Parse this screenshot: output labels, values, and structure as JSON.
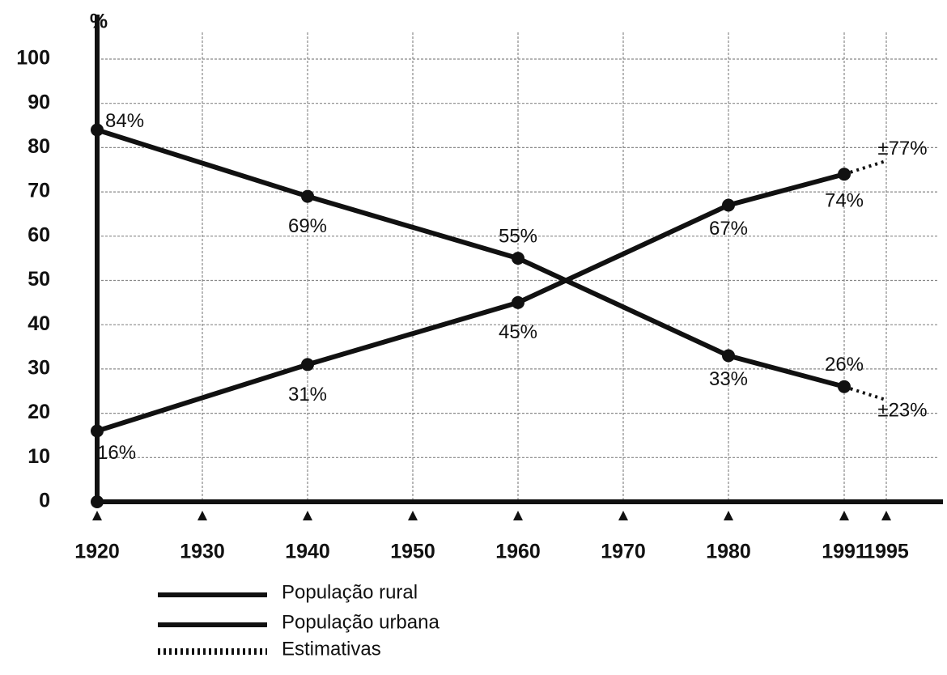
{
  "chart_data": {
    "type": "line",
    "y_label": "%",
    "x": [
      1920,
      1940,
      1960,
      1980,
      1991
    ],
    "series": [
      {
        "name": "População rural",
        "color": "#111111",
        "values": [
          84,
          69,
          55,
          33,
          26
        ],
        "value_labels": [
          "84%",
          "69%",
          "55%",
          "33%",
          "26%"
        ],
        "estimate": 23,
        "estimate_label": "±23%"
      },
      {
        "name": "População urbana",
        "color": "#111111",
        "values": [
          16,
          31,
          45,
          67,
          74
        ],
        "value_labels": [
          "16%",
          "31%",
          "45%",
          "67%",
          "74%"
        ],
        "estimate": 77,
        "estimate_label": "±77%"
      }
    ],
    "estimate_x": 1995,
    "estimate_legend": "Estimativas",
    "xlim": [
      1920,
      2000
    ],
    "xticks": [
      1920,
      1930,
      1940,
      1950,
      1960,
      1970,
      1980,
      1991,
      1995
    ],
    "ylim": [
      0,
      100
    ],
    "yticks": [
      0,
      10,
      20,
      30,
      40,
      50,
      60,
      70,
      80,
      90,
      100
    ],
    "grid": true
  }
}
